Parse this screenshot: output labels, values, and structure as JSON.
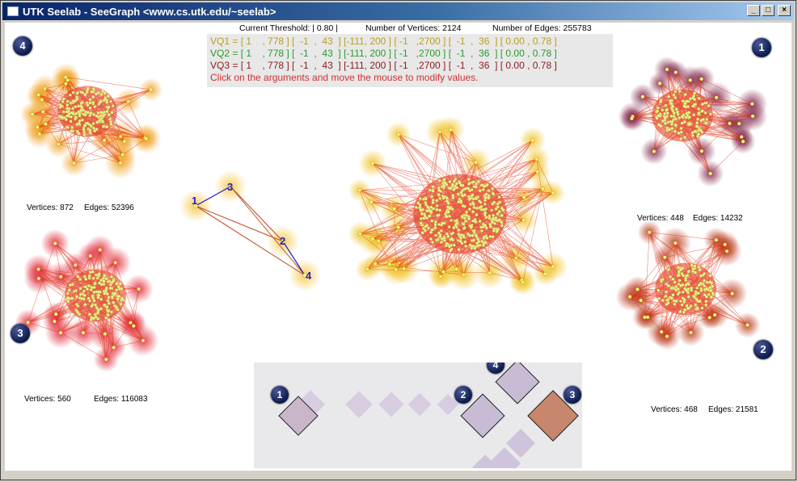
{
  "window": {
    "title": "UTK Seelab - SeeGraph <www.cs.utk.edu/~seelab>",
    "controls": {
      "minimize": "_",
      "maximize": "□",
      "close": "×"
    }
  },
  "status": {
    "threshold": "Current Threshold: | 0.80 |",
    "vertices": "Number of Vertices: 2124",
    "edges": "Number of Edges: 255783"
  },
  "queries": [
    {
      "label": "VQ1",
      "text": "VQ1 = [ 1    , 778 ] [  -1  ,  43  ] [-111, 200 ] [ -1   ,2700 ] [  -1  ,  36  ] [ 0.00 , 0.78 ]",
      "color": "#b8a01a"
    },
    {
      "label": "VQ2",
      "text": "VQ2 = [ 1    , 778 ] [  -1  ,  43  ] [-111, 200 ] [ -1   ,2700 ] [  -1  ,  36  ] [ 0.00 , 0.78 ]",
      "color": "#2a9a2a"
    },
    {
      "label": "VQ3",
      "text": "VQ3 = [ 1    , 778 ] [  -1  ,  43  ] [-111, 200 ] [ -1   ,2700 ] [  -1  ,  36  ] [ 0.00 , 0.78 ]",
      "color": "#8b1a1a"
    }
  ],
  "hint": "Click on the arguments and move the mouse to modify values.",
  "graphs": [
    {
      "id": "4",
      "vertices": "Vertices: 872",
      "edges": "Edges: 52396",
      "glow": "#f0a020"
    },
    {
      "id": "3",
      "vertices": "Vertices: 560",
      "edges": "Edges: 116083",
      "glow": "#e02030"
    },
    {
      "id": "1",
      "vertices": "Vertices: 448",
      "edges": "Edges: 14232",
      "glow": "#7a1a40"
    },
    {
      "id": "2",
      "vertices": "Vertices: 468",
      "edges": "Edges: 21581",
      "glow": "#b83010"
    },
    {
      "id": "main",
      "glow": "#f0c020"
    }
  ],
  "triangle": {
    "nodes": [
      "1",
      "3",
      "2",
      "4"
    ]
  },
  "matrix": {
    "badges": [
      "1",
      "2",
      "4",
      "3"
    ]
  },
  "colors": {
    "edge": "#e02000",
    "vertex": "#f2f58a",
    "badge": "#0c1a4a",
    "hint": "#d03030"
  }
}
